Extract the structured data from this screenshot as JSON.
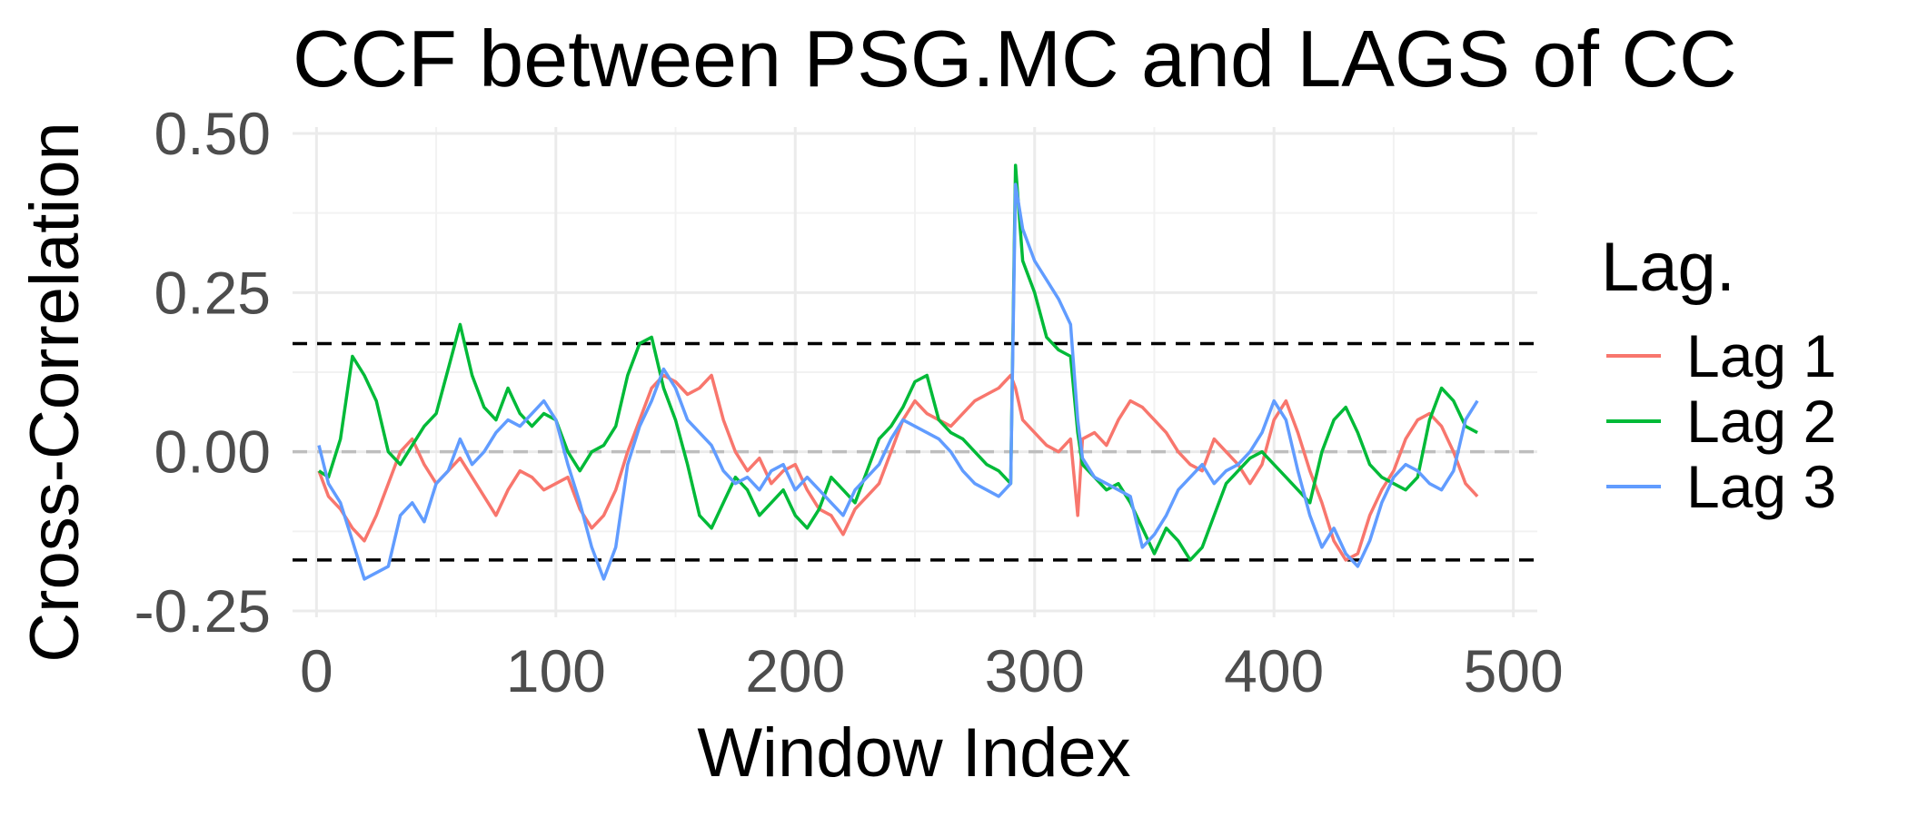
{
  "chart_data": {
    "type": "line",
    "title": "CCF between  PSG.MC and LAGS of CC",
    "xlabel": "Window Index",
    "ylabel": "Cross-Correlation",
    "xlim": [
      -10,
      510
    ],
    "ylim": [
      -0.26,
      0.51
    ],
    "x_ticks": [
      0,
      100,
      200,
      300,
      400,
      500
    ],
    "x_tick_labels": [
      "0",
      "100",
      "200",
      "300",
      "400",
      "500"
    ],
    "y_ticks": [
      -0.25,
      0,
      0.25,
      0.5
    ],
    "y_tick_labels": [
      "-0.25",
      "0.00",
      "0.25",
      "0.50"
    ],
    "grid": true,
    "reference_lines": [
      {
        "y": 0.17,
        "style": "dashed",
        "color": "#000000"
      },
      {
        "y": -0.17,
        "style": "dashed",
        "color": "#000000"
      },
      {
        "y": 0,
        "style": "dashed",
        "color": "#bebebe"
      }
    ],
    "legend": {
      "title": "Lag.",
      "position": "right"
    },
    "x": [
      1,
      5,
      10,
      15,
      20,
      25,
      30,
      35,
      40,
      45,
      50,
      55,
      60,
      65,
      70,
      75,
      80,
      85,
      90,
      95,
      100,
      105,
      110,
      115,
      120,
      125,
      130,
      135,
      140,
      145,
      150,
      155,
      160,
      165,
      170,
      175,
      180,
      185,
      190,
      195,
      200,
      205,
      210,
      215,
      220,
      225,
      230,
      235,
      240,
      245,
      250,
      255,
      260,
      265,
      270,
      275,
      280,
      285,
      290,
      292,
      295,
      300,
      305,
      310,
      315,
      318,
      320,
      325,
      330,
      335,
      340,
      345,
      350,
      355,
      360,
      365,
      370,
      375,
      380,
      385,
      390,
      395,
      400,
      405,
      410,
      415,
      420,
      425,
      430,
      435,
      440,
      445,
      450,
      455,
      460,
      465,
      470,
      475,
      480,
      485
    ],
    "series": [
      {
        "name": "Lag 1",
        "color": "#f8766d",
        "values": [
          -0.03,
          -0.07,
          -0.09,
          -0.12,
          -0.14,
          -0.1,
          -0.05,
          0.0,
          0.02,
          -0.02,
          -0.05,
          -0.03,
          -0.01,
          -0.04,
          -0.07,
          -0.1,
          -0.06,
          -0.03,
          -0.04,
          -0.06,
          -0.05,
          -0.04,
          -0.09,
          -0.12,
          -0.1,
          -0.06,
          0.0,
          0.05,
          0.1,
          0.12,
          0.11,
          0.09,
          0.1,
          0.12,
          0.05,
          0.0,
          -0.03,
          -0.01,
          -0.05,
          -0.03,
          -0.02,
          -0.06,
          -0.09,
          -0.1,
          -0.13,
          -0.09,
          -0.07,
          -0.05,
          0.0,
          0.05,
          0.08,
          0.06,
          0.05,
          0.04,
          0.06,
          0.08,
          0.09,
          0.1,
          0.12,
          0.1,
          0.05,
          0.03,
          0.01,
          0.0,
          0.02,
          -0.1,
          0.02,
          0.03,
          0.01,
          0.05,
          0.08,
          0.07,
          0.05,
          0.03,
          0.0,
          -0.02,
          -0.03,
          0.02,
          0.0,
          -0.02,
          -0.05,
          -0.02,
          0.05,
          0.08,
          0.03,
          -0.03,
          -0.08,
          -0.14,
          -0.17,
          -0.16,
          -0.1,
          -0.06,
          -0.03,
          0.02,
          0.05,
          0.06,
          0.04,
          0.0,
          -0.05,
          -0.07
        ]
      },
      {
        "name": "Lag 2",
        "color": "#00ba38",
        "values": [
          -0.03,
          -0.04,
          0.02,
          0.15,
          0.12,
          0.08,
          0.0,
          -0.02,
          0.01,
          0.04,
          0.06,
          0.13,
          0.2,
          0.12,
          0.07,
          0.05,
          0.1,
          0.06,
          0.04,
          0.06,
          0.05,
          0.0,
          -0.03,
          0.0,
          0.01,
          0.04,
          0.12,
          0.17,
          0.18,
          0.1,
          0.05,
          -0.02,
          -0.1,
          -0.12,
          -0.08,
          -0.04,
          -0.06,
          -0.1,
          -0.08,
          -0.06,
          -0.1,
          -0.12,
          -0.09,
          -0.04,
          -0.06,
          -0.08,
          -0.03,
          0.02,
          0.04,
          0.07,
          0.11,
          0.12,
          0.05,
          0.03,
          0.02,
          0.0,
          -0.02,
          -0.03,
          -0.05,
          0.45,
          0.3,
          0.25,
          0.18,
          0.16,
          0.15,
          0.03,
          -0.02,
          -0.04,
          -0.06,
          -0.05,
          -0.08,
          -0.12,
          -0.16,
          -0.12,
          -0.14,
          -0.17,
          -0.15,
          -0.1,
          -0.05,
          -0.03,
          -0.01,
          0.0,
          -0.02,
          -0.04,
          -0.06,
          -0.08,
          0.0,
          0.05,
          0.07,
          0.03,
          -0.02,
          -0.04,
          -0.05,
          -0.06,
          -0.04,
          0.05,
          0.1,
          0.08,
          0.04,
          0.03
        ]
      },
      {
        "name": "Lag 3",
        "color": "#619cff",
        "values": [
          0.01,
          -0.05,
          -0.08,
          -0.14,
          -0.2,
          -0.19,
          -0.18,
          -0.1,
          -0.08,
          -0.11,
          -0.05,
          -0.03,
          0.02,
          -0.02,
          0.0,
          0.03,
          0.05,
          0.04,
          0.06,
          0.08,
          0.05,
          -0.02,
          -0.08,
          -0.15,
          -0.2,
          -0.15,
          -0.02,
          0.04,
          0.08,
          0.13,
          0.1,
          0.05,
          0.03,
          0.01,
          -0.03,
          -0.05,
          -0.04,
          -0.06,
          -0.03,
          -0.02,
          -0.06,
          -0.04,
          -0.06,
          -0.08,
          -0.1,
          -0.06,
          -0.04,
          -0.02,
          0.02,
          0.05,
          0.04,
          0.03,
          0.02,
          0.0,
          -0.03,
          -0.05,
          -0.06,
          -0.07,
          -0.05,
          0.42,
          0.35,
          0.3,
          0.27,
          0.24,
          0.2,
          0.05,
          -0.01,
          -0.04,
          -0.05,
          -0.06,
          -0.07,
          -0.15,
          -0.13,
          -0.1,
          -0.06,
          -0.04,
          -0.02,
          -0.05,
          -0.03,
          -0.02,
          0.0,
          0.03,
          0.08,
          0.05,
          -0.03,
          -0.1,
          -0.15,
          -0.12,
          -0.16,
          -0.18,
          -0.14,
          -0.08,
          -0.04,
          -0.02,
          -0.03,
          -0.05,
          -0.06,
          -0.03,
          0.05,
          0.08
        ]
      }
    ]
  }
}
